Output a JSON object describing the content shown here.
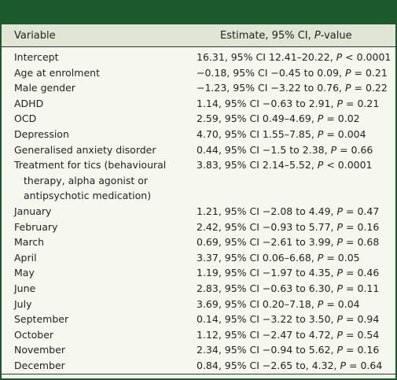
{
  "table": {
    "headers": {
      "variable": "Variable",
      "estimate_prefix": "Estimate, 95% CI, ",
      "estimate_italic": "P",
      "estimate_suffix": "-value"
    },
    "rows": [
      {
        "variable": "Intercept",
        "estimate": "16.31, 95% CI 12.41–20.22, P < 0.0001"
      },
      {
        "variable": "Age at enrolment",
        "estimate": "−0.18, 95% CI −0.45 to 0.09, P = 0.21"
      },
      {
        "variable": "Male gender",
        "estimate": "−1.23, 95% CI −3.22 to 0.76, P = 0.22"
      },
      {
        "variable": "ADHD",
        "estimate": "1.14, 95% CI −0.63 to 2.91, P = 0.21"
      },
      {
        "variable": "OCD",
        "estimate": "2.59, 95% CI 0.49–4.69, P = 0.02"
      },
      {
        "variable": "Depression",
        "estimate": "4.70, 95% CI 1.55–7.85, P = 0.004"
      },
      {
        "variable": "Generalised anxiety disorder",
        "estimate": "0.44, 95% CI −1.5 to 2.38, P = 0.66"
      },
      {
        "variable_line1": "Treatment for tics (behavioural",
        "variable_line2": "therapy, alpha agonist or",
        "variable_line3": "antipsychotic medication)",
        "estimate": "3.83, 95% CI 2.14–5.52, P < 0.0001"
      },
      {
        "variable": "January",
        "estimate": "1.21, 95% CI −2.08 to 4.49, P = 0.47"
      },
      {
        "variable": "February",
        "estimate": "2.42, 95% CI −0.93 to 5.77, P = 0.16"
      },
      {
        "variable": "March",
        "estimate": "0.69, 95% CI −2.61 to 3.99, P = 0.68"
      },
      {
        "variable": "April",
        "estimate": "3.37, 95% CI 0.06–6.68, P = 0.05"
      },
      {
        "variable": "May",
        "estimate": "1.19, 95% CI −1.97 to 4.35, P = 0.46"
      },
      {
        "variable": "June",
        "estimate": "2.83, 95% CI −0.63 to 6.30, P = 0.11"
      },
      {
        "variable": "July",
        "estimate": "3.69, 95% CI 0.20–7.18, P = 0.04"
      },
      {
        "variable": "September",
        "estimate": "0.14, 95% CI −3.22 to 3.50, P = 0.94"
      },
      {
        "variable": "October",
        "estimate": "1.12, 95% CI −2.47 to 4.72, P = 0.54"
      },
      {
        "variable": "November",
        "estimate": "2.34, 95% CI −0.94 to 5.62, P = 0.16"
      },
      {
        "variable": "December",
        "estimate": "0.84, 95% CI −2.65 to, 4.32, P = 0.64"
      }
    ]
  },
  "colors": {
    "topbar": "#1a5a2c",
    "header_bg": "#e0e5d6",
    "body_bg": "#f6f8ef"
  }
}
